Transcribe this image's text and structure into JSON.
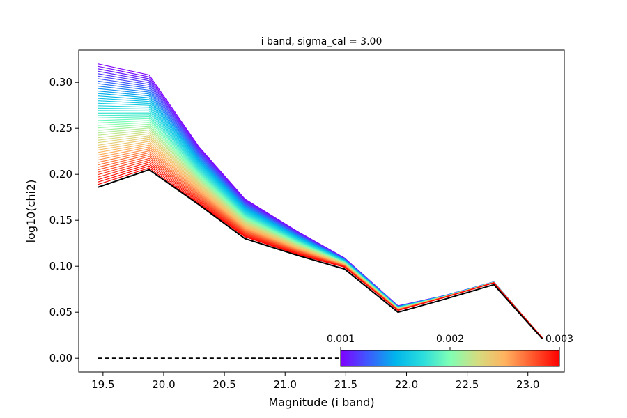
{
  "chart_data": {
    "type": "line",
    "title": "i band, sigma_cal = 3.00",
    "xlabel": "Magnitude (i band)",
    "ylabel": "log10(chi2)",
    "xlim": [
      19.3,
      23.3
    ],
    "ylim": [
      -0.015,
      0.335
    ],
    "x_ticks": [
      "19.5",
      "20.0",
      "20.5",
      "21.0",
      "21.5",
      "22.0",
      "22.5",
      "23.0"
    ],
    "y_ticks": [
      "0.00",
      "0.05",
      "0.10",
      "0.15",
      "0.20",
      "0.25",
      "0.30"
    ],
    "grid": false,
    "x": [
      19.46,
      19.88,
      20.29,
      20.67,
      21.1,
      21.49,
      21.93,
      22.31,
      22.72,
      23.12
    ],
    "series_top": {
      "values": [
        0.32,
        0.308,
        0.23,
        0.173,
        0.138,
        0.109,
        0.057,
        0.068,
        0.083,
        0.022
      ],
      "colormap_value": 0.001
    },
    "series_bottom": {
      "values": [
        0.189,
        0.207,
        0.168,
        0.132,
        0.113,
        0.099,
        0.052,
        0.066,
        0.082,
        0.022
      ],
      "colormap_value": 0.003
    },
    "series_count": 50,
    "black_line": {
      "values": [
        0.186,
        0.205,
        0.167,
        0.13,
        0.112,
        0.097,
        0.05,
        0.064,
        0.08,
        0.021
      ],
      "color": "#000000"
    },
    "reference_line": {
      "x": [
        19.46,
        21.49
      ],
      "y": 0.0,
      "style": "dashed",
      "color": "#000000"
    },
    "colorbar": {
      "colormap": "rainbow",
      "range": [
        0.001,
        0.003
      ],
      "ticks": [
        "0.001",
        "0.002",
        "0.003"
      ],
      "stops": [
        "#8000ff",
        "#3d5afe",
        "#00b5eb",
        "#2adddd",
        "#80ffb4",
        "#d4dd80",
        "#ffb360",
        "#ff5a2e",
        "#ff0000"
      ]
    }
  }
}
